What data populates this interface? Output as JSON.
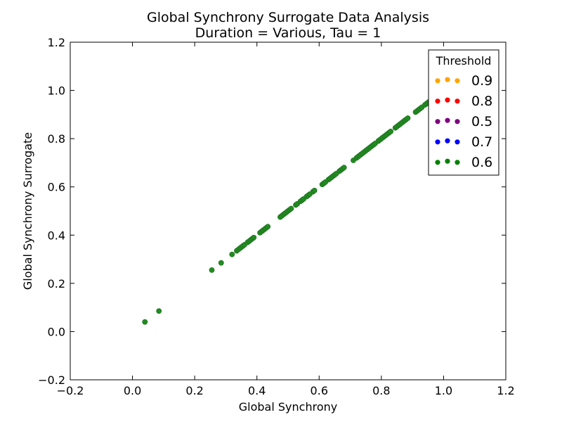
{
  "chart_data": {
    "type": "scatter",
    "title": "Global Synchrony Surrogate Data Analysis",
    "subtitle": "Duration = Various, Tau = 1",
    "xlabel": "Global Synchrony",
    "ylabel": "Global Synchrony Surrogate",
    "xlim": [
      -0.2,
      1.2
    ],
    "ylim": [
      -0.2,
      1.2
    ],
    "xticks": [
      -0.2,
      0.0,
      0.2,
      0.4,
      0.6,
      0.8,
      1.0,
      1.2
    ],
    "yticks": [
      -0.2,
      0.0,
      0.2,
      0.4,
      0.6,
      0.8,
      1.0,
      1.2
    ],
    "xtick_labels": [
      "−0.2",
      "0.0",
      "0.2",
      "0.4",
      "0.6",
      "0.8",
      "1.0",
      "1.2"
    ],
    "ytick_labels": [
      "−0.2",
      "0.0",
      "0.2",
      "0.4",
      "0.6",
      "0.8",
      "1.0",
      "1.2"
    ],
    "grid": false,
    "legend": {
      "title": "Threshold",
      "placement": "top-right",
      "entries": [
        {
          "label": "0.9",
          "color": "#ffa500"
        },
        {
          "label": "0.8",
          "color": "#ff0000"
        },
        {
          "label": "0.5",
          "color": "#800080"
        },
        {
          "label": "0.7",
          "color": "#0000ff"
        },
        {
          "label": "0.6",
          "color": "#008000"
        }
      ]
    },
    "series": [
      {
        "name": "0.6",
        "color": "#228b22",
        "x": [
          0.04,
          0.085,
          0.255,
          0.285,
          0.32,
          0.335,
          0.34,
          0.345,
          0.35,
          0.355,
          0.36,
          0.37,
          0.375,
          0.38,
          0.385,
          0.39,
          0.41,
          0.415,
          0.42,
          0.425,
          0.43,
          0.435,
          0.475,
          0.48,
          0.485,
          0.49,
          0.495,
          0.5,
          0.505,
          0.51,
          0.525,
          0.53,
          0.54,
          0.545,
          0.55,
          0.56,
          0.565,
          0.57,
          0.58,
          0.585,
          0.61,
          0.615,
          0.62,
          0.63,
          0.635,
          0.64,
          0.645,
          0.65,
          0.655,
          0.665,
          0.67,
          0.675,
          0.68,
          0.71,
          0.72,
          0.725,
          0.73,
          0.735,
          0.74,
          0.745,
          0.75,
          0.755,
          0.76,
          0.765,
          0.77,
          0.775,
          0.78,
          0.79,
          0.795,
          0.8,
          0.805,
          0.81,
          0.815,
          0.82,
          0.825,
          0.83,
          0.845,
          0.85,
          0.855,
          0.86,
          0.865,
          0.87,
          0.875,
          0.88,
          0.885,
          0.91,
          0.915,
          0.92,
          0.925,
          0.93,
          0.94,
          0.945,
          0.95,
          0.955,
          0.96,
          0.965,
          0.97
        ],
        "y": [
          0.04,
          0.085,
          0.255,
          0.285,
          0.32,
          0.335,
          0.34,
          0.345,
          0.35,
          0.355,
          0.36,
          0.37,
          0.375,
          0.38,
          0.385,
          0.39,
          0.41,
          0.415,
          0.42,
          0.425,
          0.43,
          0.435,
          0.475,
          0.48,
          0.485,
          0.49,
          0.495,
          0.5,
          0.505,
          0.51,
          0.525,
          0.53,
          0.54,
          0.545,
          0.55,
          0.56,
          0.565,
          0.57,
          0.58,
          0.585,
          0.61,
          0.615,
          0.62,
          0.63,
          0.635,
          0.64,
          0.645,
          0.65,
          0.655,
          0.665,
          0.67,
          0.675,
          0.68,
          0.71,
          0.72,
          0.725,
          0.73,
          0.735,
          0.74,
          0.745,
          0.75,
          0.755,
          0.76,
          0.765,
          0.77,
          0.775,
          0.78,
          0.79,
          0.795,
          0.8,
          0.805,
          0.81,
          0.815,
          0.82,
          0.825,
          0.83,
          0.845,
          0.85,
          0.855,
          0.86,
          0.865,
          0.87,
          0.875,
          0.88,
          0.885,
          0.91,
          0.915,
          0.92,
          0.925,
          0.93,
          0.94,
          0.945,
          0.95,
          0.955,
          0.96,
          0.965,
          0.97
        ]
      }
    ]
  }
}
